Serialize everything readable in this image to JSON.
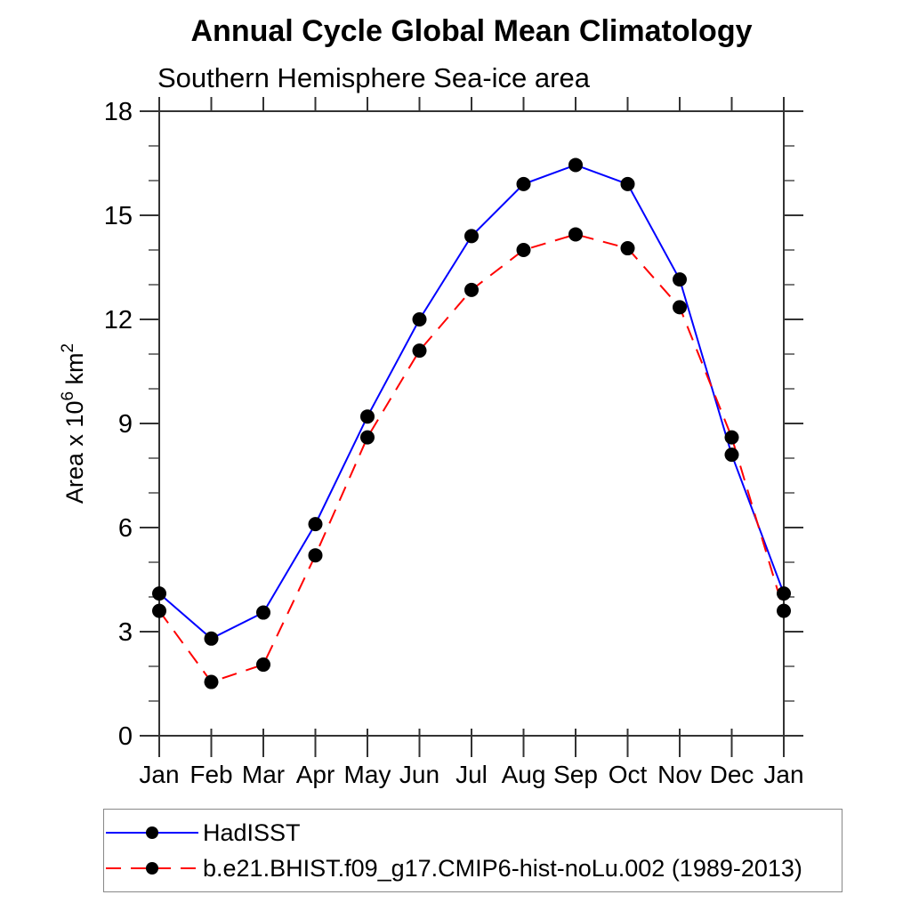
{
  "chart_data": {
    "type": "line",
    "title": "Annual Cycle Global Mean Climatology",
    "subtitle": "Southern Hemisphere Sea-ice area",
    "ylabel": "Area x 10^6 km^2",
    "ylabel_parts": [
      {
        "text": "Area x 10",
        "sup": false
      },
      {
        "text": "6",
        "sup": true
      },
      {
        "text": " km",
        "sup": false
      },
      {
        "text": "2",
        "sup": true
      }
    ],
    "ylim": [
      0,
      18
    ],
    "yticks_major": [
      0,
      3,
      6,
      9,
      12,
      15,
      18
    ],
    "ytick_minor_step": 1,
    "grid": false,
    "legend_position": "bottom-left",
    "categories": [
      "Jan",
      "Feb",
      "Mar",
      "Apr",
      "May",
      "Jun",
      "Jul",
      "Aug",
      "Sep",
      "Oct",
      "Nov",
      "Dec",
      "Jan"
    ],
    "series": [
      {
        "name": "HadISST",
        "color": "#0000ff",
        "line_style": "solid",
        "marker": "circle",
        "marker_color": "#000000",
        "values": [
          4.1,
          2.8,
          3.55,
          6.1,
          9.2,
          12.0,
          14.4,
          15.9,
          16.45,
          15.9,
          13.15,
          8.1,
          4.1
        ]
      },
      {
        "name": "b.e21.BHIST.f09_g17.CMIP6-hist-noLu.002 (1989-2013)",
        "color": "#ff0000",
        "line_style": "dashed",
        "marker": "circle",
        "marker_color": "#000000",
        "values": [
          3.6,
          1.55,
          2.05,
          5.2,
          8.6,
          11.1,
          12.85,
          14.0,
          14.45,
          14.05,
          12.35,
          8.6,
          3.6
        ]
      }
    ]
  }
}
